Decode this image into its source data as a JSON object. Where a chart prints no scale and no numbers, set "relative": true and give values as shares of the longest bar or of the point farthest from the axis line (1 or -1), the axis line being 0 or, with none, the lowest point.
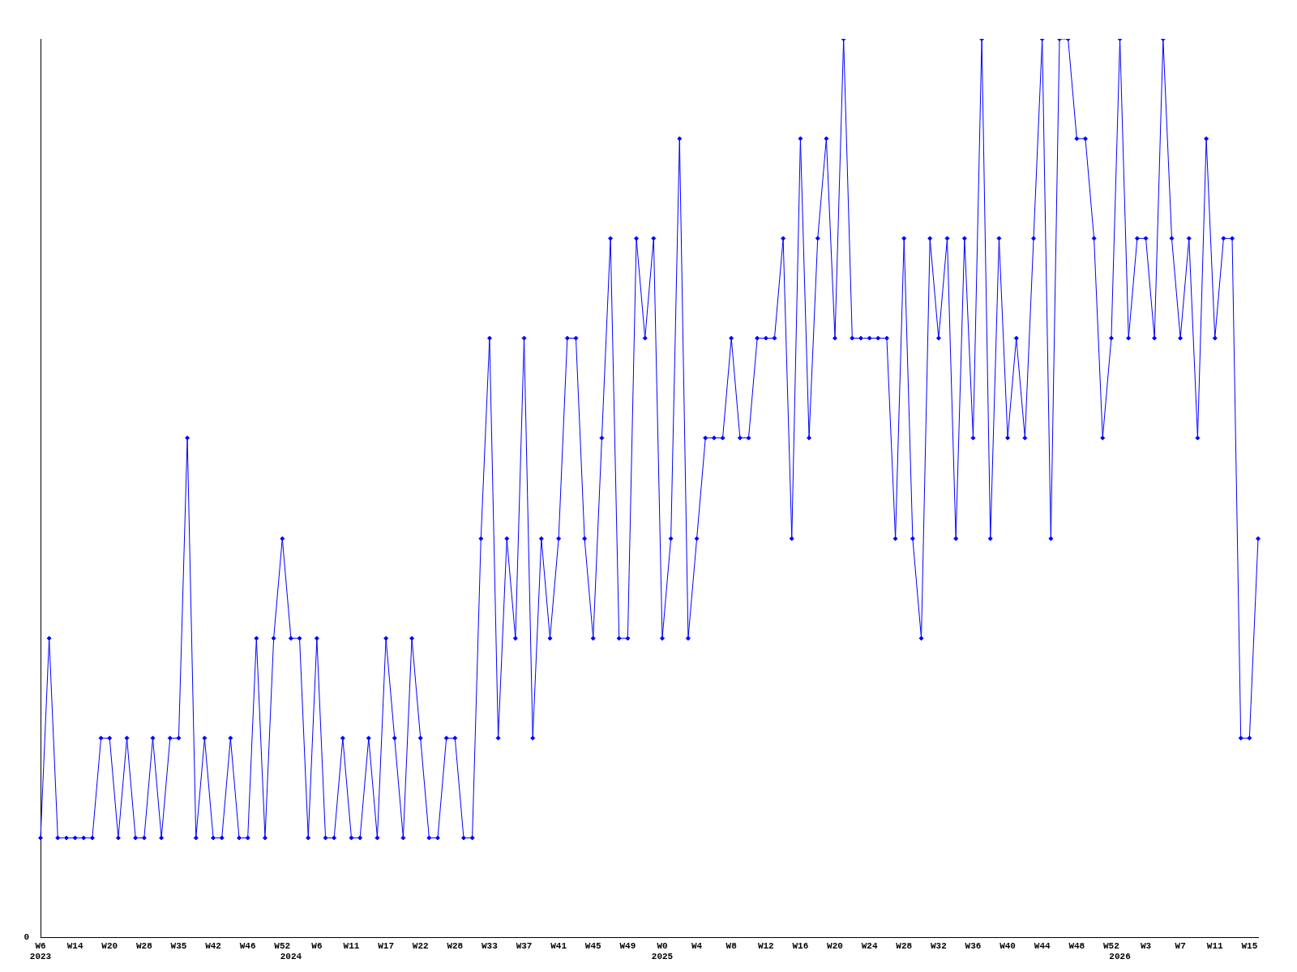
{
  "chart_data": {
    "type": "line",
    "relative": true,
    "annotations": [
      "0"
    ],
    "grid": false,
    "legend": false,
    "marker": "diamond",
    "line_style": "solid",
    "categories": [
      "W6\n2023",
      null,
      null,
      null,
      "W14",
      null,
      null,
      null,
      "W20",
      null,
      null,
      null,
      "W28",
      null,
      null,
      null,
      "W35",
      null,
      null,
      null,
      "W42",
      null,
      null,
      null,
      "W46",
      null,
      null,
      null,
      "W52",
      "\n2024",
      null,
      null,
      "W6",
      null,
      null,
      null,
      "W11",
      null,
      null,
      null,
      "W17",
      null,
      null,
      null,
      "W22",
      null,
      null,
      null,
      "W28",
      null,
      null,
      null,
      "W33",
      null,
      null,
      null,
      "W37",
      null,
      null,
      null,
      "W41",
      null,
      null,
      null,
      "W45",
      null,
      null,
      null,
      "W49",
      null,
      null,
      null,
      "W0\n2025",
      null,
      null,
      null,
      "W4",
      null,
      null,
      null,
      "W8",
      null,
      null,
      null,
      "W12",
      null,
      null,
      null,
      "W16",
      null,
      null,
      null,
      "W20",
      null,
      null,
      null,
      "W24",
      null,
      null,
      null,
      "W28",
      null,
      null,
      null,
      "W32",
      null,
      null,
      null,
      "W36",
      null,
      null,
      null,
      "W40",
      null,
      null,
      null,
      "W44",
      null,
      null,
      null,
      "W48",
      null,
      null,
      null,
      "W52",
      "\n2026",
      null,
      null,
      "W3",
      null,
      null,
      null,
      "W7",
      null,
      null,
      null,
      "W11",
      null,
      null,
      null,
      "W15",
      null
    ],
    "series": [
      {
        "color": "#0000ff",
        "values": [
          0.111,
          0.333,
          0.111,
          0.111,
          0.111,
          0.111,
          0.111,
          0.222,
          0.222,
          0.111,
          0.222,
          0.111,
          0.111,
          0.222,
          0.111,
          0.222,
          0.222,
          0.556,
          0.111,
          0.222,
          0.111,
          0.111,
          0.222,
          0.111,
          0.111,
          0.333,
          0.111,
          0.333,
          0.444,
          0.333,
          0.333,
          0.111,
          0.333,
          0.111,
          0.111,
          0.222,
          0.111,
          0.111,
          0.222,
          0.111,
          0.333,
          0.222,
          0.111,
          0.333,
          0.222,
          0.111,
          0.111,
          0.222,
          0.222,
          0.111,
          0.111,
          0.444,
          0.667,
          0.222,
          0.444,
          0.333,
          0.667,
          0.222,
          0.444,
          0.333,
          0.444,
          0.667,
          0.667,
          0.444,
          0.333,
          0.556,
          0.778,
          0.333,
          0.333,
          0.778,
          0.667,
          0.778,
          0.333,
          0.444,
          0.889,
          0.333,
          0.444,
          0.556,
          0.556,
          0.556,
          0.667,
          0.556,
          0.556,
          0.667,
          0.667,
          0.667,
          0.778,
          0.444,
          0.889,
          0.556,
          0.778,
          0.889,
          0.667,
          1,
          0.667,
          0.667,
          0.667,
          0.667,
          0.667,
          0.444,
          0.778,
          0.444,
          0.333,
          0.778,
          0.667,
          0.778,
          0.444,
          0.778,
          0.556,
          1,
          0.444,
          0.778,
          0.556,
          0.667,
          0.556,
          0.778,
          1,
          0.444,
          1,
          1,
          0.889,
          0.889,
          0.778,
          0.556,
          0.667,
          1,
          0.667,
          0.778,
          0.778,
          0.667,
          1,
          0.778,
          0.667,
          0.778,
          0.556,
          0.889,
          0.667,
          0.778,
          0.778,
          0.222,
          0.222,
          0.444
        ]
      }
    ]
  }
}
